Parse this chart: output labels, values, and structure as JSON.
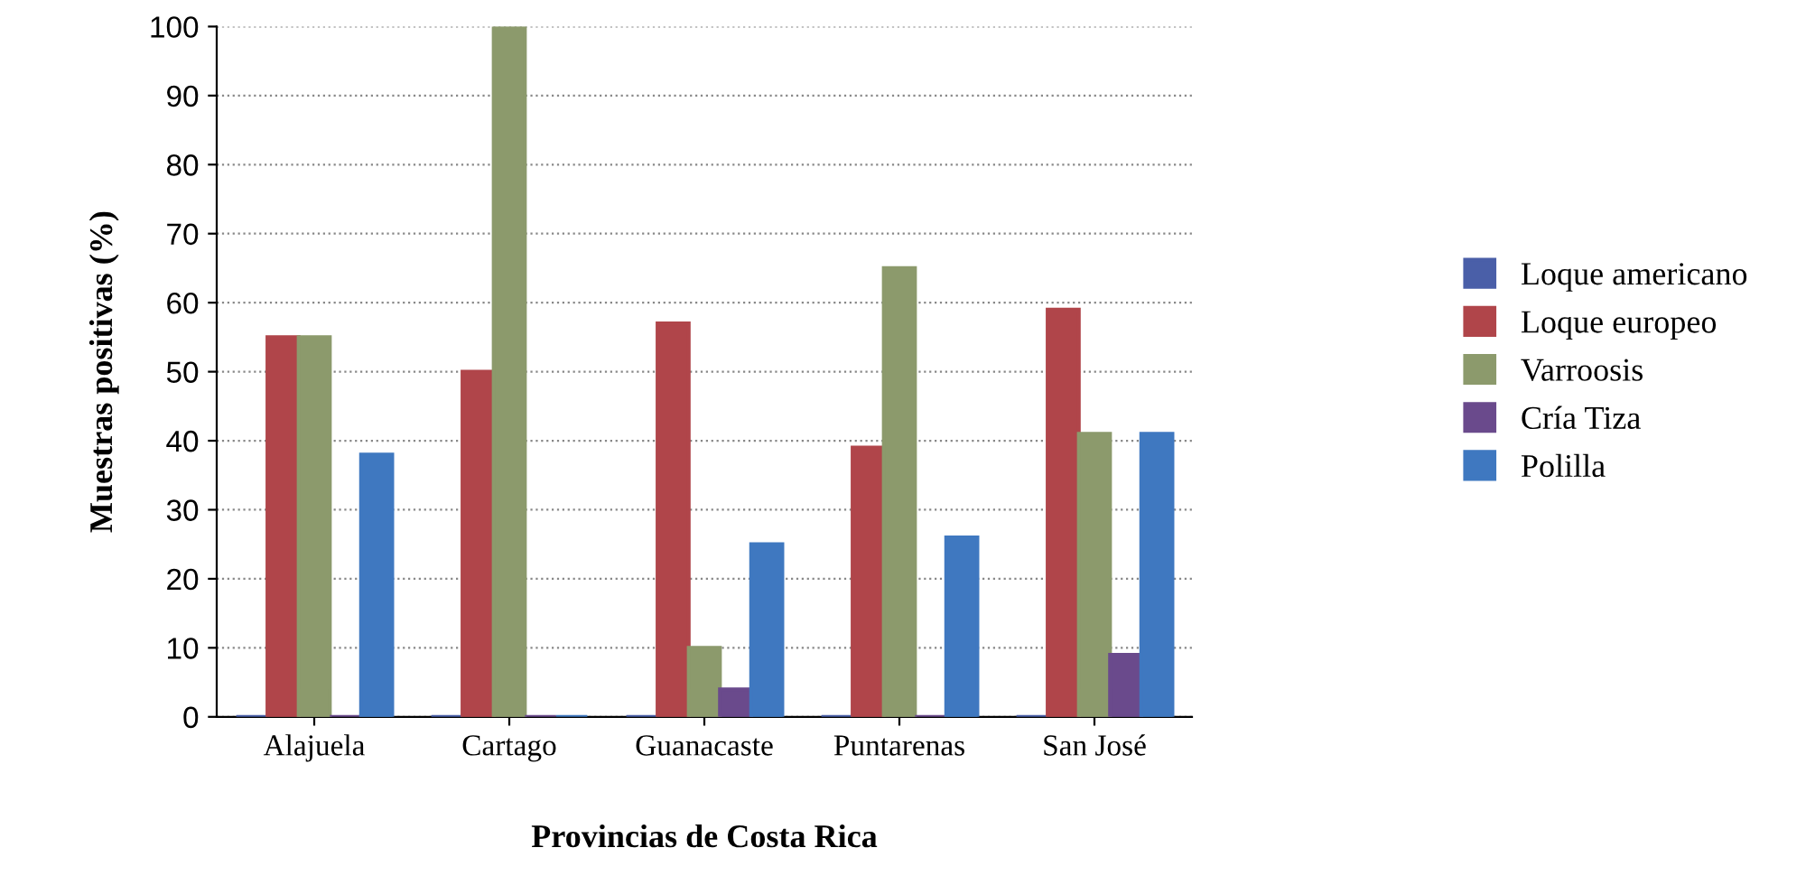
{
  "chart_data": {
    "type": "bar",
    "xlabel": "Provincias de Costa Rica",
    "ylabel": "Muestras positivas (%)",
    "categories": [
      "Alajuela",
      "Cartago",
      "Guanacaste",
      "Puntarenas",
      "San José"
    ],
    "series": [
      {
        "name": "Loque americano",
        "color": "#4a5fa8",
        "values": [
          0,
          0,
          0,
          0,
          0
        ]
      },
      {
        "name": "Loque europeo",
        "color": "#b0454a",
        "values": [
          55,
          50,
          57,
          39,
          59
        ]
      },
      {
        "name": "Varroosis",
        "color": "#8c9a6c",
        "values": [
          55,
          100,
          10,
          65,
          41
        ]
      },
      {
        "name": "Cría Tiza",
        "color": "#6a4a8c",
        "values": [
          0,
          0,
          4,
          0,
          9
        ]
      },
      {
        "name": "Polilla",
        "color": "#3f78c0",
        "values": [
          38,
          0,
          25,
          26,
          41
        ]
      }
    ],
    "ylim": [
      0,
      100
    ],
    "yticks": [
      0,
      10,
      20,
      30,
      40,
      50,
      60,
      70,
      80,
      90,
      100
    ],
    "grid": "y",
    "legend": "right"
  }
}
